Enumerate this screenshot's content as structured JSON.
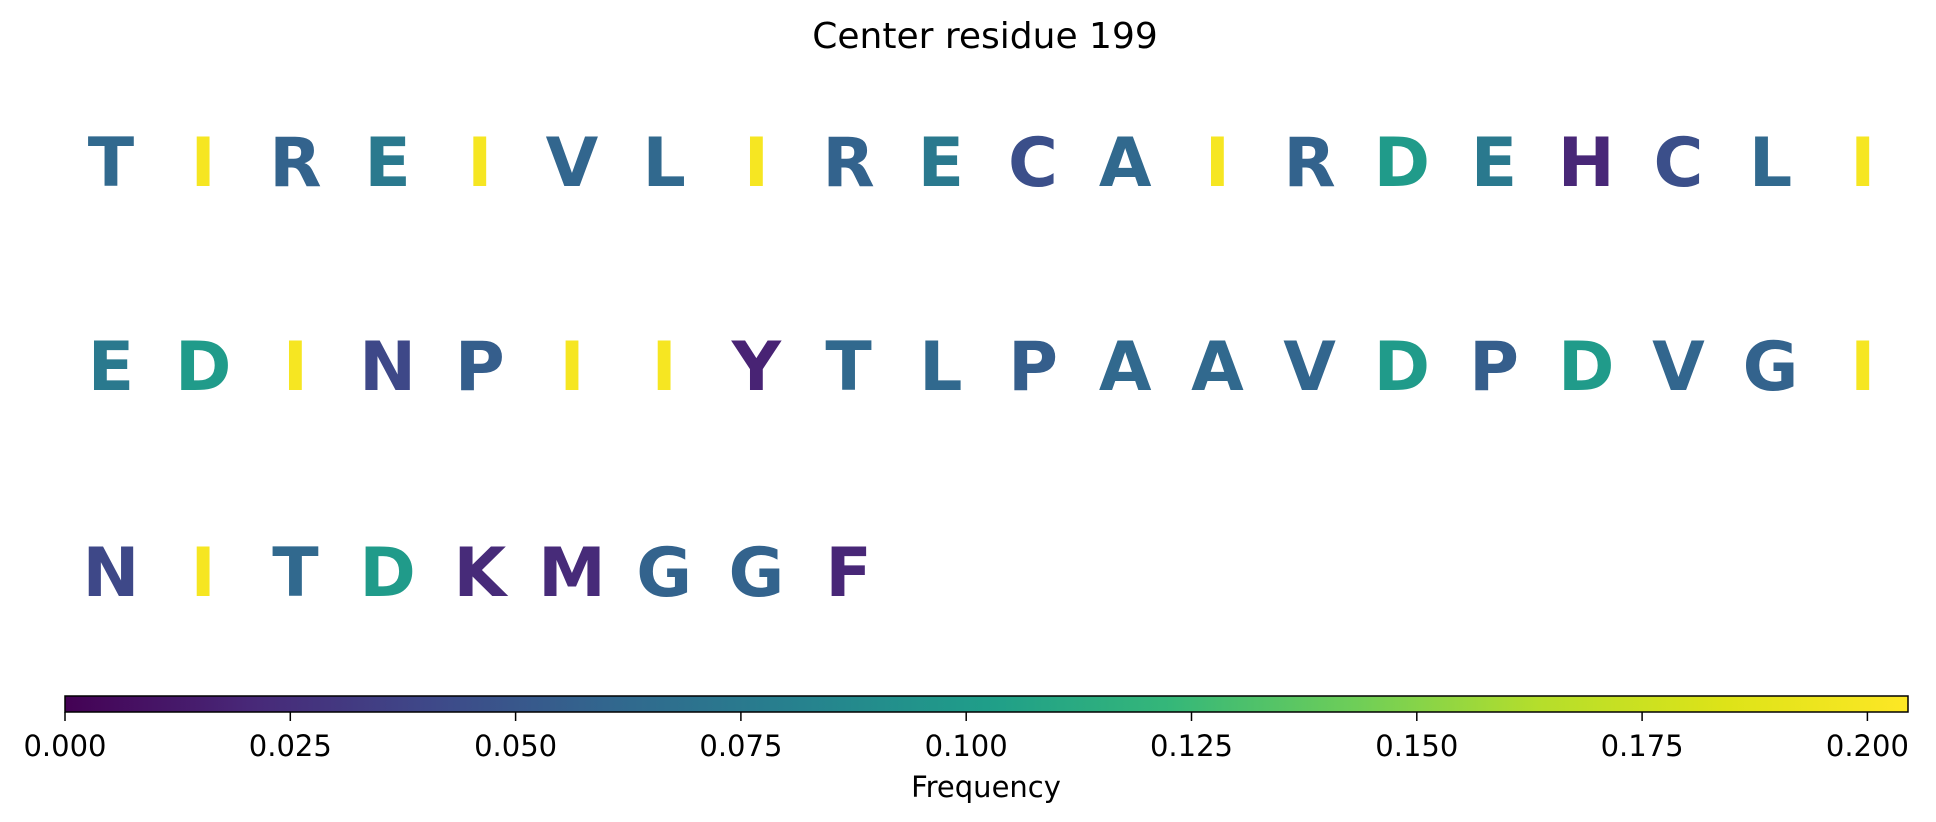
{
  "chart_data": {
    "type": "sequence-logo",
    "title": "Center residue 199",
    "residues": [
      {
        "letter": "T",
        "frequency": 0.062
      },
      {
        "letter": "I",
        "frequency": 0.2
      },
      {
        "letter": "R",
        "frequency": 0.058
      },
      {
        "letter": "E",
        "frequency": 0.075
      },
      {
        "letter": "I",
        "frequency": 0.2
      },
      {
        "letter": "V",
        "frequency": 0.06
      },
      {
        "letter": "L",
        "frequency": 0.062
      },
      {
        "letter": "I",
        "frequency": 0.2
      },
      {
        "letter": "R",
        "frequency": 0.058
      },
      {
        "letter": "E",
        "frequency": 0.075
      },
      {
        "letter": "C",
        "frequency": 0.045
      },
      {
        "letter": "A",
        "frequency": 0.062
      },
      {
        "letter": "I",
        "frequency": 0.2
      },
      {
        "letter": "R",
        "frequency": 0.058
      },
      {
        "letter": "D",
        "frequency": 0.1
      },
      {
        "letter": "E",
        "frequency": 0.075
      },
      {
        "letter": "H",
        "frequency": 0.02
      },
      {
        "letter": "C",
        "frequency": 0.045
      },
      {
        "letter": "L",
        "frequency": 0.062
      },
      {
        "letter": "I",
        "frequency": 0.2
      },
      {
        "letter": "E",
        "frequency": 0.075
      },
      {
        "letter": "D",
        "frequency": 0.1
      },
      {
        "letter": "I",
        "frequency": 0.2
      },
      {
        "letter": "N",
        "frequency": 0.04
      },
      {
        "letter": "P",
        "frequency": 0.055
      },
      {
        "letter": "I",
        "frequency": 0.2
      },
      {
        "letter": "I",
        "frequency": 0.2
      },
      {
        "letter": "Y",
        "frequency": 0.018
      },
      {
        "letter": "T",
        "frequency": 0.062
      },
      {
        "letter": "L",
        "frequency": 0.062
      },
      {
        "letter": "P",
        "frequency": 0.055
      },
      {
        "letter": "A",
        "frequency": 0.062
      },
      {
        "letter": "A",
        "frequency": 0.062
      },
      {
        "letter": "V",
        "frequency": 0.06
      },
      {
        "letter": "D",
        "frequency": 0.1
      },
      {
        "letter": "P",
        "frequency": 0.055
      },
      {
        "letter": "D",
        "frequency": 0.1
      },
      {
        "letter": "V",
        "frequency": 0.06
      },
      {
        "letter": "G",
        "frequency": 0.058
      },
      {
        "letter": "I",
        "frequency": 0.2
      },
      {
        "letter": "N",
        "frequency": 0.04
      },
      {
        "letter": "I",
        "frequency": 0.2
      },
      {
        "letter": "T",
        "frequency": 0.062
      },
      {
        "letter": "D",
        "frequency": 0.1
      },
      {
        "letter": "K",
        "frequency": 0.022
      },
      {
        "letter": "M",
        "frequency": 0.022
      },
      {
        "letter": "G",
        "frequency": 0.058
      },
      {
        "letter": "G",
        "frequency": 0.058
      },
      {
        "letter": "F",
        "frequency": 0.02
      }
    ],
    "residues_per_row": 20,
    "colormap": "viridis",
    "colorbar": {
      "label": "Frequency",
      "range": [
        0,
        0.2045
      ],
      "ticks": [
        0.0,
        0.025,
        0.05,
        0.075,
        0.1,
        0.125,
        0.15,
        0.175,
        0.2
      ],
      "tick_labels": [
        "0.000",
        "0.025",
        "0.050",
        "0.075",
        "0.100",
        "0.125",
        "0.150",
        "0.175",
        "0.200"
      ],
      "orientation": "horizontal",
      "placement": "bottom"
    },
    "grid": false,
    "axes_visible": false
  }
}
